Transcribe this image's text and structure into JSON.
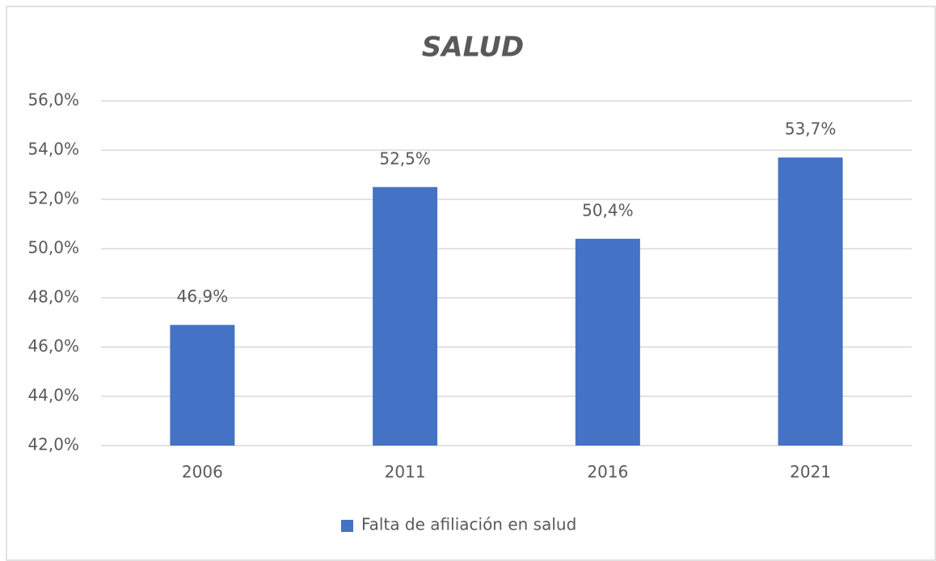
{
  "chart_data": {
    "type": "bar",
    "title": "SALUD",
    "categories": [
      "2006",
      "2011",
      "2016",
      "2021"
    ],
    "series": [
      {
        "name": "Falta de afiliación en salud",
        "color": "#4472c4",
        "values": [
          46.9,
          52.5,
          50.4,
          53.7
        ],
        "value_labels": [
          "46,9%",
          "52,5%",
          "50,4%",
          "53,7%"
        ]
      }
    ],
    "ylim": [
      42,
      56
    ],
    "yticks": [
      {
        "value": 42,
        "label": "42,0%"
      },
      {
        "value": 44,
        "label": "44,0%"
      },
      {
        "value": 46,
        "label": "46,0%"
      },
      {
        "value": 48,
        "label": "48,0%"
      },
      {
        "value": 50,
        "label": "50,0%"
      },
      {
        "value": 52,
        "label": "52,0%"
      },
      {
        "value": 54,
        "label": "54,0%"
      },
      {
        "value": 56,
        "label": "56,0%"
      }
    ],
    "grid": true,
    "legend": "bottom"
  }
}
